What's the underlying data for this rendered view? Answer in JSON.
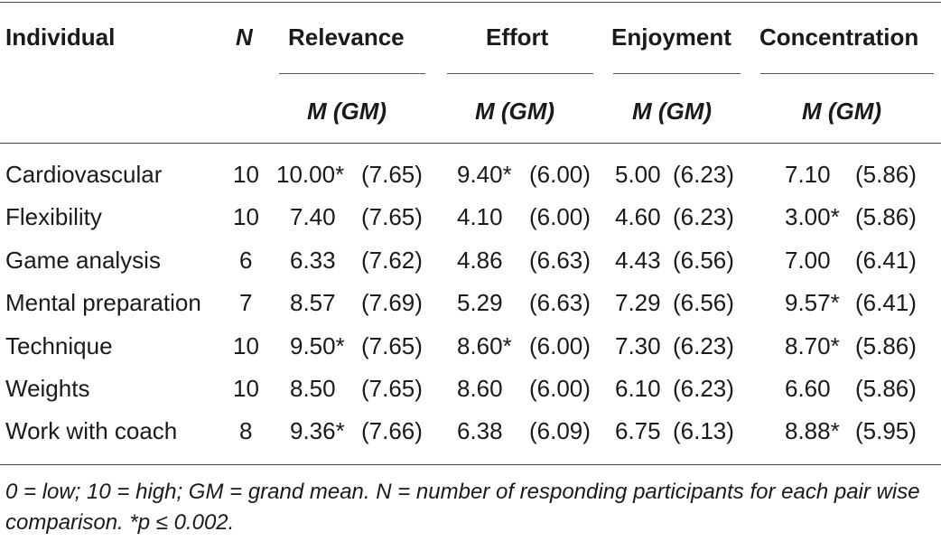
{
  "headers": {
    "individual": "Individual",
    "n": "N",
    "relevance": "Relevance",
    "effort": "Effort",
    "enjoyment": "Enjoyment",
    "concentration": "Concentration"
  },
  "subheaders": {
    "relevance": "M (GM)",
    "effort": "M (GM)",
    "enjoyment": "M (GM)",
    "concentration": "M (GM)"
  },
  "rows": [
    {
      "name": "Cardiovascular",
      "n": "10",
      "rel_m": "10.00*",
      "rel_gm": "(7.65)",
      "eff_m": "9.40*",
      "eff_gm": "(6.00)",
      "enj_m": "5.00",
      "enj_gm": "(6.23)",
      "con_m": "7.10",
      "con_gm": "(5.86)"
    },
    {
      "name": "Flexibility",
      "n": "10",
      "rel_m": "7.40",
      "rel_gm": "(7.65)",
      "eff_m": "4.10",
      "eff_gm": "(6.00)",
      "enj_m": "4.60",
      "enj_gm": "(6.23)",
      "con_m": "3.00*",
      "con_gm": "(5.86)"
    },
    {
      "name": "Game analysis",
      "n": "6",
      "rel_m": "6.33",
      "rel_gm": "(7.62)",
      "eff_m": "4.86",
      "eff_gm": "(6.63)",
      "enj_m": "4.43",
      "enj_gm": "(6.56)",
      "con_m": "7.00",
      "con_gm": "(6.41)"
    },
    {
      "name": "Mental preparation",
      "n": "7",
      "rel_m": "8.57",
      "rel_gm": "(7.69)",
      "eff_m": "5.29",
      "eff_gm": "(6.63)",
      "enj_m": "7.29",
      "enj_gm": "(6.56)",
      "con_m": "9.57*",
      "con_gm": "(6.41)"
    },
    {
      "name": "Technique",
      "n": "10",
      "rel_m": "9.50*",
      "rel_gm": "(7.65)",
      "eff_m": "8.60*",
      "eff_gm": "(6.00)",
      "enj_m": "7.30",
      "enj_gm": "(6.23)",
      "con_m": "8.70*",
      "con_gm": "(5.86)"
    },
    {
      "name": "Weights",
      "n": "10",
      "rel_m": "8.50",
      "rel_gm": "(7.65)",
      "eff_m": "8.60",
      "eff_gm": "(6.00)",
      "enj_m": "6.10",
      "enj_gm": "(6.23)",
      "con_m": "6.60",
      "con_gm": "(5.86)"
    },
    {
      "name": "Work with coach",
      "n": "8",
      "rel_m": "9.36*",
      "rel_gm": "(7.66)",
      "eff_m": "6.38",
      "eff_gm": "(6.09)",
      "enj_m": "6.75",
      "enj_gm": "(6.13)",
      "con_m": "8.88*",
      "con_gm": "(5.95)"
    }
  ],
  "note": "0 = low; 10 = high; GM = grand mean. N = number of responding participants for each pair wise comparison. *p ≤ 0.002."
}
